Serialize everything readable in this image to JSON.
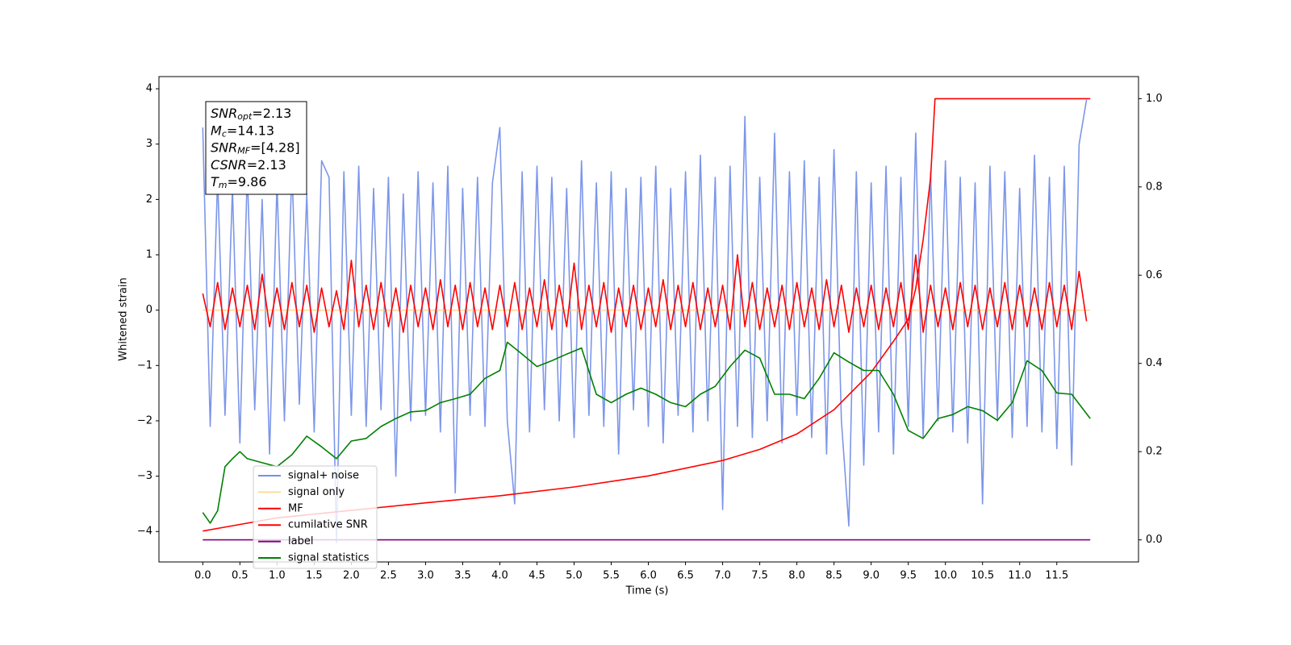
{
  "chart_data": {
    "type": "line",
    "xlabel": "Time (s)",
    "ylabel": "Whitened strain",
    "xlim": [
      -0.59,
      12.6
    ],
    "ylim": [
      -4.55,
      4.22
    ],
    "y2lim": [
      -0.05,
      1.05
    ],
    "xticks": [
      {
        "value": 0,
        "label": "0.0"
      },
      0.5,
      {
        "value": 1,
        "label": "1.0"
      },
      1.5,
      {
        "value": 2,
        "label": "2.0"
      },
      2.5,
      {
        "value": 3,
        "label": "3.0"
      },
      3.5,
      {
        "value": 4,
        "label": "4.0"
      },
      4.5,
      {
        "value": 5,
        "label": "5.0"
      },
      5.5,
      {
        "value": 6,
        "label": "6.0"
      },
      6.5,
      {
        "value": 7,
        "label": "7.0"
      },
      7.5,
      {
        "value": 8,
        "label": "8.0"
      },
      8.5,
      {
        "value": 9,
        "label": "9.0"
      },
      9.5,
      {
        "value": 10,
        "label": "10.0"
      },
      10.5,
      {
        "value": 11,
        "label": "11.0"
      },
      11.5
    ],
    "yticks": [
      {
        "value": -4,
        "label": "−4"
      },
      {
        "value": -3,
        "label": "−3"
      },
      {
        "value": -2,
        "label": "−2"
      },
      {
        "value": -1,
        "label": "−1"
      },
      0,
      1,
      2,
      3,
      4
    ],
    "y2ticks": [
      {
        "value": 0,
        "label": "0.0"
      },
      0.2,
      0.4,
      0.6,
      0.8,
      {
        "value": 1,
        "label": "1.0"
      }
    ],
    "annotations": [
      {
        "symbol": "SNR",
        "subscript": "opt",
        "text": "=2.13"
      },
      {
        "symbol": "M",
        "subscript": "c",
        "text": "=14.13"
      },
      {
        "symbol": "SNR",
        "subscript": "MF",
        "text": "=[4.28]"
      },
      {
        "symbol": "CSNR",
        "text": "=2.13"
      },
      {
        "symbol": "T",
        "subscript": "m",
        "text": "=9.86"
      }
    ],
    "x": [
      0.0,
      0.1,
      0.2,
      0.3,
      0.4,
      0.5,
      0.6,
      0.7,
      0.8,
      0.9,
      1.0,
      1.1,
      1.2,
      1.3,
      1.4,
      1.5,
      1.6,
      1.7,
      1.8,
      1.9,
      2.0,
      2.1,
      2.2,
      2.3,
      2.4,
      2.5,
      2.6,
      2.7,
      2.8,
      2.9,
      3.0,
      3.1,
      3.2,
      3.3,
      3.4,
      3.5,
      3.6,
      3.7,
      3.8,
      3.9,
      4.0,
      4.1,
      4.2,
      4.3,
      4.4,
      4.5,
      4.6,
      4.7,
      4.8,
      4.9,
      5.0,
      5.1,
      5.2,
      5.3,
      5.4,
      5.5,
      5.6,
      5.7,
      5.8,
      5.9,
      6.0,
      6.1,
      6.2,
      6.3,
      6.4,
      6.5,
      6.6,
      6.7,
      6.8,
      6.9,
      7.0,
      7.1,
      7.2,
      7.3,
      7.4,
      7.5,
      7.6,
      7.7,
      7.8,
      7.9,
      8.0,
      8.1,
      8.2,
      8.3,
      8.4,
      8.5,
      8.6,
      8.7,
      8.8,
      8.9,
      9.0,
      9.1,
      9.2,
      9.3,
      9.4,
      9.5,
      9.6,
      9.7,
      9.8,
      9.9,
      10.0,
      10.1,
      10.2,
      10.3,
      10.4,
      10.5,
      10.6,
      10.7,
      10.8,
      10.9,
      11.0,
      11.1,
      11.2,
      11.3,
      11.4,
      11.5,
      11.6,
      11.7,
      11.8,
      11.9
    ],
    "series": [
      {
        "name": "signal+ noise",
        "color": "#7590e8",
        "values": [
          3.3,
          -2.1,
          2.4,
          -1.9,
          2.2,
          -2.4,
          2.5,
          -1.8,
          2.0,
          -2.6,
          2.3,
          -2.0,
          2.6,
          -1.7,
          2.1,
          -2.2,
          2.7,
          2.4,
          -4.2,
          2.5,
          -1.9,
          2.6,
          -2.1,
          2.2,
          -1.8,
          2.4,
          -3.0,
          2.1,
          -2.0,
          2.5,
          -1.9,
          2.3,
          -2.2,
          2.6,
          -3.3,
          2.2,
          -1.9,
          2.4,
          -2.1,
          2.3,
          3.3,
          -2.0,
          -3.5,
          2.5,
          -2.2,
          2.6,
          -1.8,
          2.4,
          -2.0,
          2.2,
          -2.3,
          2.7,
          -1.9,
          2.3,
          -2.1,
          2.5,
          -2.6,
          2.2,
          -1.8,
          2.4,
          -2.1,
          2.6,
          -2.4,
          2.2,
          -1.9,
          2.5,
          -2.2,
          2.8,
          -2.0,
          2.4,
          -3.6,
          2.6,
          -2.1,
          3.5,
          -2.3,
          2.4,
          -2.0,
          3.2,
          -2.4,
          2.5,
          -1.9,
          2.7,
          -2.3,
          2.4,
          -2.6,
          2.9,
          -2.0,
          -3.9,
          2.5,
          -2.8,
          2.3,
          -2.2,
          2.6,
          -2.6,
          2.4,
          -2.1,
          3.2,
          -2.3,
          2.5,
          -2.0,
          2.7,
          -2.2,
          2.4,
          -2.4,
          2.3,
          -3.5,
          2.6,
          -2.0,
          2.5,
          -2.3,
          2.2,
          -2.1,
          2.8,
          -2.2,
          2.4,
          -2.5,
          2.6,
          -2.8,
          3.0,
          3.8
        ]
      },
      {
        "name": "signal only",
        "color": "#ffd27f",
        "x": [
          0.0,
          11.95
        ],
        "values": [
          0,
          0
        ]
      },
      {
        "name": "MF",
        "color": "#ff0000",
        "values": [
          0.3,
          -0.3,
          0.5,
          -0.35,
          0.4,
          -0.3,
          0.45,
          -0.35,
          0.65,
          -0.3,
          0.4,
          -0.35,
          0.5,
          -0.3,
          0.45,
          -0.4,
          0.4,
          -0.3,
          0.35,
          -0.35,
          0.9,
          -0.3,
          0.45,
          -0.35,
          0.5,
          -0.3,
          0.4,
          -0.4,
          0.45,
          -0.3,
          0.4,
          -0.35,
          0.55,
          -0.3,
          0.45,
          -0.35,
          0.5,
          -0.3,
          0.4,
          -0.35,
          0.45,
          -0.3,
          0.5,
          -0.35,
          0.4,
          -0.3,
          0.55,
          -0.35,
          0.45,
          -0.3,
          0.85,
          -0.35,
          0.45,
          -0.3,
          0.5,
          -0.4,
          0.4,
          -0.3,
          0.45,
          -0.35,
          0.4,
          -0.3,
          0.55,
          -0.35,
          0.45,
          -0.3,
          0.5,
          -0.35,
          0.4,
          -0.3,
          0.45,
          -0.35,
          1.0,
          -0.3,
          0.5,
          -0.35,
          0.4,
          -0.3,
          0.45,
          -0.35,
          0.5,
          -0.3,
          0.4,
          -0.35,
          0.55,
          -0.3,
          0.45,
          -0.4,
          0.4,
          -0.3,
          0.45,
          -0.35,
          0.4,
          -0.3,
          0.5,
          -0.35,
          1.0,
          -0.4,
          0.45,
          -0.3,
          0.4,
          -0.35,
          0.5,
          -0.3,
          0.45,
          -0.35,
          0.4,
          -0.3,
          0.5,
          -0.35,
          0.45,
          -0.3,
          0.4,
          -0.35,
          0.5,
          -0.3,
          0.45,
          -0.35,
          0.7,
          -0.2
        ]
      },
      {
        "name": "cumilative SNR",
        "color": "#ff0000",
        "axis": "y2",
        "x": [
          0.0,
          0.5,
          1.0,
          2.0,
          3.0,
          4.0,
          5.0,
          6.0,
          7.0,
          7.5,
          8.0,
          8.5,
          9.0,
          9.3,
          9.5,
          9.6,
          9.7,
          9.8,
          9.86,
          11.95
        ],
        "values": [
          0.02,
          0.035,
          0.05,
          0.067,
          0.084,
          0.1,
          0.12,
          0.145,
          0.18,
          0.205,
          0.24,
          0.295,
          0.38,
          0.45,
          0.5,
          0.57,
          0.68,
          0.82,
          1.0,
          1.0
        ]
      },
      {
        "name": "label",
        "color": "#800080",
        "axis": "y2",
        "x": [
          0.0,
          11.95
        ],
        "values": [
          0,
          0
        ]
      },
      {
        "name": "signal statistics",
        "color": "#008000",
        "axis": "y2",
        "x": [
          0.0,
          0.1,
          0.2,
          0.3,
          0.4,
          0.5,
          0.6,
          0.8,
          1.0,
          1.2,
          1.4,
          1.6,
          1.8,
          2.0,
          2.2,
          2.4,
          2.6,
          2.8,
          3.0,
          3.2,
          3.4,
          3.6,
          3.8,
          4.0,
          4.1,
          4.3,
          4.5,
          4.7,
          4.9,
          5.1,
          5.3,
          5.5,
          5.7,
          5.9,
          6.1,
          6.3,
          6.5,
          6.7,
          6.9,
          7.1,
          7.3,
          7.5,
          7.7,
          7.9,
          8.1,
          8.3,
          8.5,
          8.7,
          8.9,
          9.1,
          9.3,
          9.5,
          9.7,
          9.9,
          10.1,
          10.3,
          10.5,
          10.7,
          10.9,
          11.1,
          11.3,
          11.5,
          11.7,
          11.95
        ],
        "values": [
          0.062,
          0.038,
          0.066,
          0.166,
          0.184,
          0.2,
          0.184,
          0.175,
          0.166,
          0.193,
          0.235,
          0.211,
          0.184,
          0.224,
          0.23,
          0.257,
          0.275,
          0.29,
          0.293,
          0.311,
          0.32,
          0.33,
          0.366,
          0.384,
          0.448,
          0.421,
          0.393,
          0.406,
          0.421,
          0.435,
          0.33,
          0.311,
          0.33,
          0.344,
          0.33,
          0.311,
          0.302,
          0.33,
          0.348,
          0.393,
          0.43,
          0.412,
          0.33,
          0.33,
          0.32,
          0.366,
          0.424,
          0.403,
          0.384,
          0.384,
          0.33,
          0.248,
          0.23,
          0.275,
          0.284,
          0.302,
          0.293,
          0.271,
          0.311,
          0.406,
          0.384,
          0.333,
          0.33,
          0.275
        ]
      }
    ]
  }
}
